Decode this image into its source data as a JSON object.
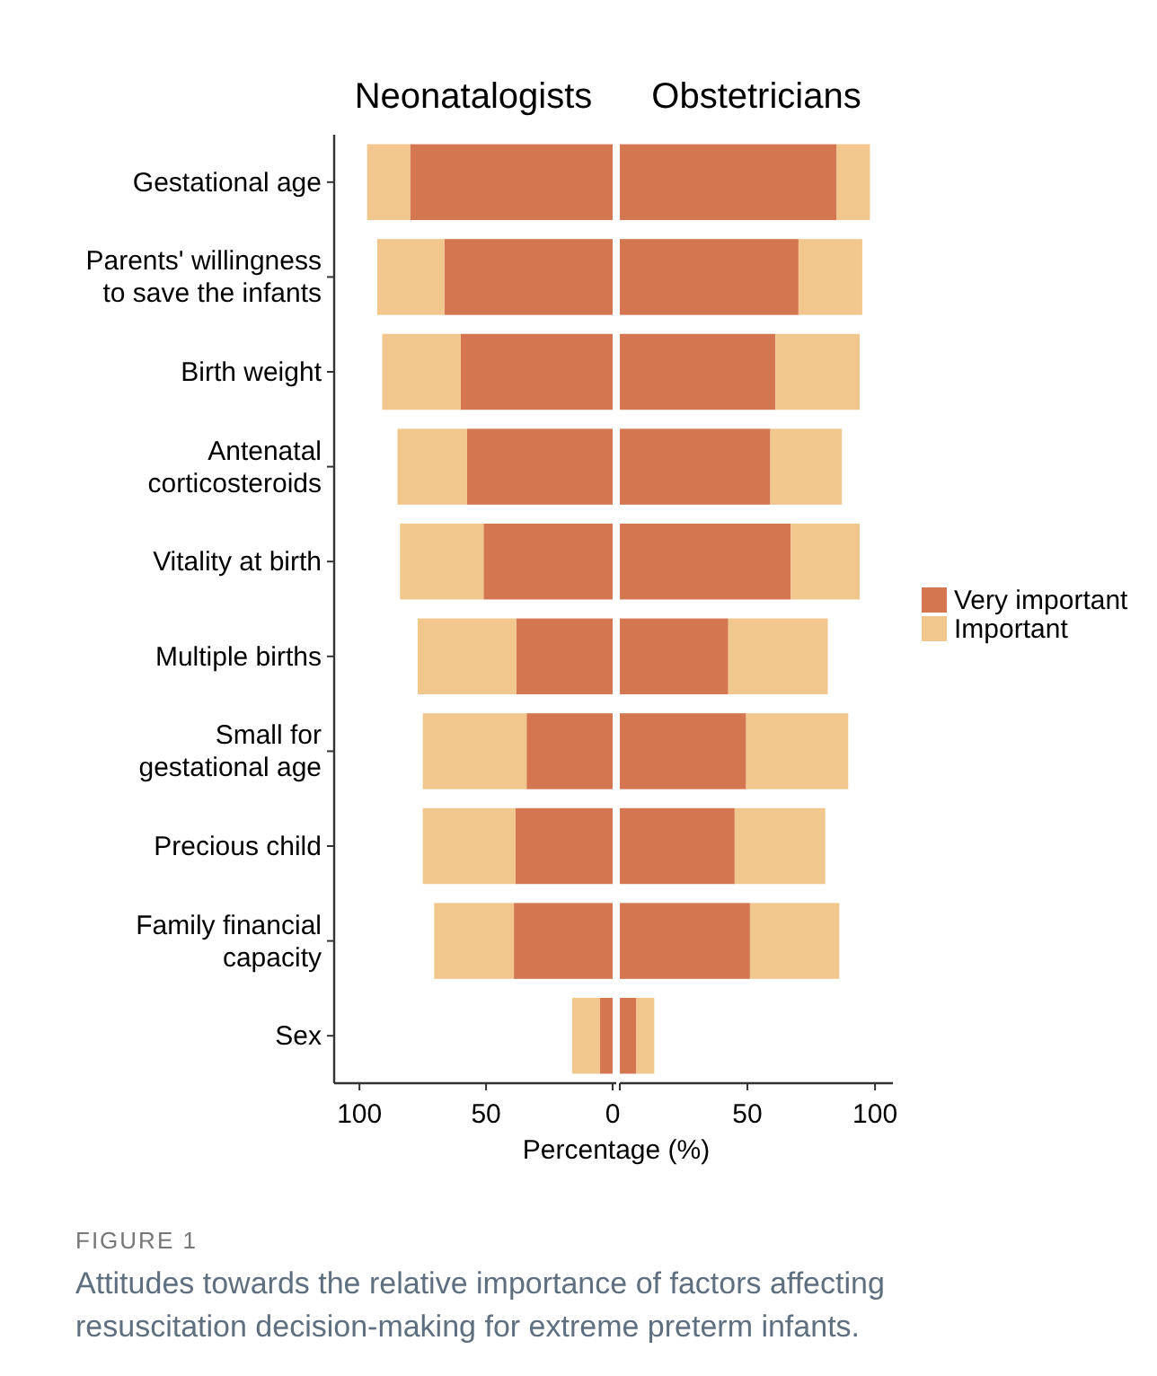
{
  "chart_data": [
    {
      "type": "bar",
      "orientation": "horizontal",
      "stacked": true,
      "title": "Neonatalogists",
      "xlabel": "Percentage (%)",
      "categories": [
        "Gestational age",
        "Parents' willingness to save the infants",
        "Birth weight",
        "Antenatal corticosteroids",
        "Vitality at birth",
        "Multiple births",
        "Small for gestational age",
        "Precious child",
        "Family financial capacity",
        "Sex"
      ],
      "series": [
        {
          "color": "#d4764f",
          "values": [
            80,
            66.5,
            60,
            57.5,
            51,
            38,
            34,
            38.5,
            39,
            5
          ]
        },
        {
          "color": "#f2c78e",
          "values": [
            17,
            26.5,
            31,
            27.5,
            33,
            39,
            41,
            36.5,
            31.5,
            11
          ]
        }
      ],
      "xlim": [
        110,
        0
      ],
      "xticks": [
        100,
        50,
        0
      ],
      "legend": false,
      "annotations": [
        "FIGURE 1",
        "Attitudes towards the relative importance of factors affecting resuscitation decision-making for extreme preterm infants."
      ]
    },
    {
      "type": "bar",
      "orientation": "horizontal",
      "stacked": true,
      "title": "Obstetricians",
      "categories": [
        null,
        null,
        null,
        null,
        null,
        null,
        null,
        null,
        null,
        null
      ],
      "series": [
        {
          "name": "Very important",
          "color": "#d4764f",
          "values": [
            85,
            70,
            61,
            59,
            67,
            42.5,
            49.5,
            45,
            51,
            6.5
          ]
        },
        {
          "name": "Important",
          "color": "#f2c78e",
          "values": [
            13,
            25,
            33,
            28,
            27,
            39,
            40,
            35.5,
            35,
            7
          ]
        }
      ],
      "xlim": [
        0,
        107
      ],
      "xticks": [
        {
          "value": 0,
          "label": null
        },
        50,
        100
      ],
      "tick_labels": "x",
      "legend": "right"
    }
  ]
}
